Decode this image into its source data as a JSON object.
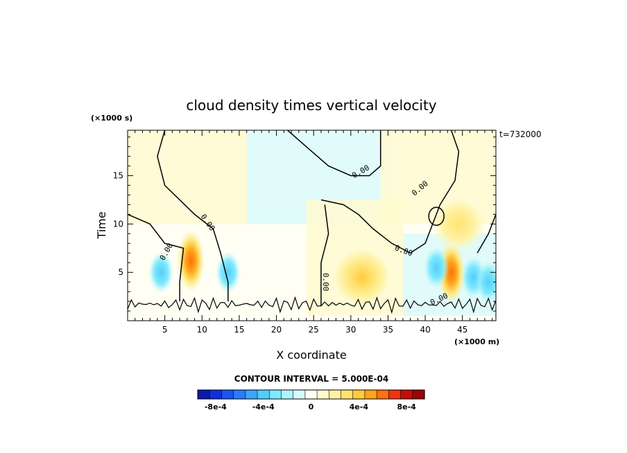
{
  "chart_data": {
    "type": "heatmap",
    "title": "cloud density times vertical velocity",
    "xlabel": "X coordinate",
    "ylabel": "Time",
    "x_unit": "(×1000 m)",
    "y_unit": "(×1000 s)",
    "time_label": "t=732000",
    "xlim": [
      0,
      49.5
    ],
    "ylim": [
      0,
      19.7
    ],
    "x_ticks": [
      5,
      10,
      15,
      20,
      25,
      30,
      35,
      40,
      45
    ],
    "y_ticks": [
      5,
      10,
      15
    ],
    "contour_interval_text": "CONTOUR INTERVAL = 5.000E-04",
    "zero_contour_labels": [
      "0.00",
      "0.00",
      "0.00",
      "0.00",
      "0.00",
      "0.00",
      "0.00"
    ],
    "colorbar": {
      "tick_labels": [
        "-8e-4",
        "-4e-4",
        "0",
        "4e-4",
        "8e-4"
      ],
      "tick_values": [
        -0.0008,
        -0.0004,
        0,
        0.0004,
        0.0008
      ],
      "colors": [
        "#0a1aa8",
        "#1030d8",
        "#1a55ee",
        "#2a7cf5",
        "#3ca5fa",
        "#55cdfc",
        "#7ee9fd",
        "#b0f4fb",
        "#dafafa",
        "#fffff4",
        "#fffad0",
        "#fff2a6",
        "#ffe372",
        "#ffcb3c",
        "#ffa318",
        "#ff7010",
        "#ee3410",
        "#c40e0a",
        "#9a0606"
      ]
    },
    "regions": [
      {
        "kind": "negative",
        "x_range": [
          16,
          36
        ],
        "y_range": [
          10,
          19.7
        ],
        "approx_value": -0.0001
      },
      {
        "kind": "negative",
        "x_range": [
          37,
          49.5
        ],
        "y_range": [
          0.5,
          9
        ],
        "approx_value": -0.0001
      },
      {
        "kind": "positive",
        "x_range": [
          0,
          16
        ],
        "y_range": [
          10,
          19.7
        ],
        "approx_value": 5e-05
      },
      {
        "kind": "positive",
        "x_range": [
          24,
          37
        ],
        "y_range": [
          0.5,
          12.5
        ],
        "approx_value": 5e-05
      },
      {
        "kind": "positive",
        "x_range": [
          34,
          49.5
        ],
        "y_range": [
          10,
          19.7
        ],
        "approx_value": 5e-05
      }
    ],
    "anomalies": [
      {
        "kind": "max",
        "x": 8.5,
        "y": 6.2,
        "value": 0.0006
      },
      {
        "kind": "max",
        "x": 31.5,
        "y": 4.5,
        "value": 0.0002
      },
      {
        "kind": "max",
        "x": 43.5,
        "y": 5.0,
        "value": 0.0004
      },
      {
        "kind": "max",
        "x": 44.5,
        "y": 10.0,
        "value": 0.0001
      },
      {
        "kind": "min",
        "x": 4.5,
        "y": 5.0,
        "value": -0.0002
      },
      {
        "kind": "min",
        "x": 13.5,
        "y": 5.0,
        "value": -0.0002
      },
      {
        "kind": "min",
        "x": 41.5,
        "y": 5.5,
        "value": -0.0002
      },
      {
        "kind": "min",
        "x": 46.5,
        "y": 4.5,
        "value": -0.0002
      },
      {
        "kind": "min",
        "x": 48.5,
        "y": 4.0,
        "value": -0.0002
      }
    ],
    "zero_contours": [
      [
        [
          5,
          19.7
        ],
        [
          4,
          17
        ],
        [
          5,
          14
        ],
        [
          9,
          11
        ],
        [
          11.5,
          9.5
        ],
        [
          12.5,
          7
        ],
        [
          13.5,
          4
        ],
        [
          13.5,
          2
        ]
      ],
      [
        [
          0,
          11
        ],
        [
          3,
          10
        ],
        [
          5,
          8
        ],
        [
          7.5,
          7.5
        ],
        [
          7,
          4
        ],
        [
          7,
          2
        ]
      ],
      [
        [
          21.5,
          19.7
        ],
        [
          24,
          18
        ],
        [
          27,
          16
        ],
        [
          30,
          15
        ],
        [
          32.5,
          15
        ],
        [
          34,
          16
        ],
        [
          34,
          19.7
        ]
      ],
      [
        [
          26,
          12.5
        ],
        [
          29,
          12
        ],
        [
          31,
          11
        ],
        [
          33,
          9.5
        ],
        [
          35.5,
          8
        ],
        [
          38,
          7
        ],
        [
          40,
          8
        ],
        [
          42,
          12
        ],
        [
          44,
          14.5
        ],
        [
          44.5,
          17.5
        ],
        [
          43.5,
          19.7
        ]
      ],
      [
        [
          26.5,
          12
        ],
        [
          27,
          9
        ],
        [
          26,
          6
        ],
        [
          26,
          1.5
        ]
      ],
      [
        [
          49.5,
          11
        ],
        [
          48.5,
          9
        ],
        [
          47,
          7
        ]
      ]
    ]
  }
}
